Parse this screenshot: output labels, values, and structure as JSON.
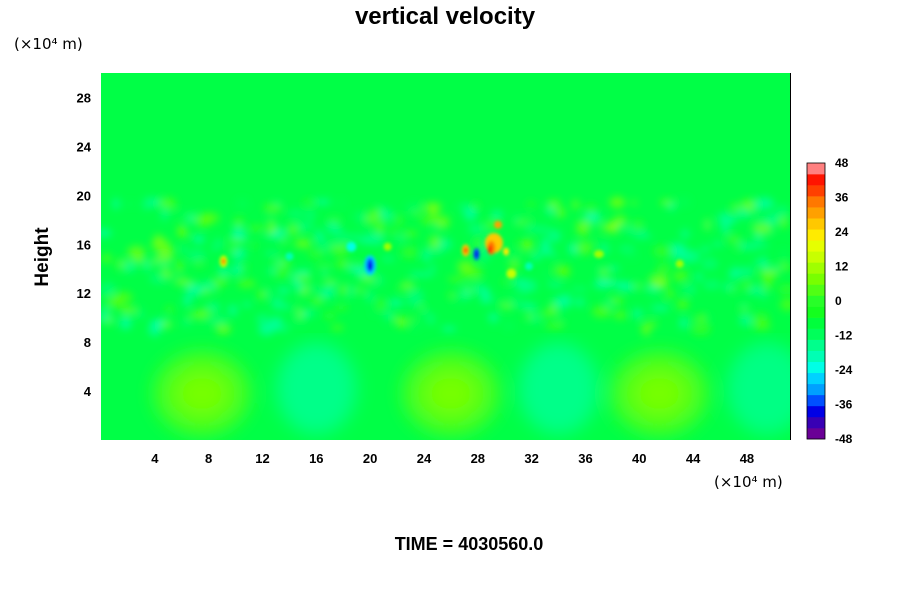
{
  "chart_data": {
    "type": "heatmap",
    "title": "vertical velocity",
    "ylabel": "Height",
    "x_unit_label": "(×10⁴ m)",
    "y_unit_label": "(×10⁴ m)",
    "xlim": [
      0,
      51.2
    ],
    "ylim": [
      0,
      30
    ],
    "x_ticks": [
      4,
      8,
      12,
      16,
      20,
      24,
      28,
      32,
      36,
      40,
      44,
      48
    ],
    "y_ticks": [
      4,
      8,
      12,
      16,
      20,
      24,
      28
    ],
    "colorbar": {
      "range": [
        -48,
        48
      ],
      "step": 4,
      "tick_values": [
        48,
        36,
        24,
        12,
        0,
        -12,
        -24,
        -36,
        -48
      ],
      "colors": [
        "#6a0096",
        "#3800b4",
        "#0000e6",
        "#0050ff",
        "#00a0ff",
        "#00d2ff",
        "#00ffe6",
        "#00ffb4",
        "#00ff8c",
        "#00ff5a",
        "#00ff3c",
        "#14ff1e",
        "#28ff28",
        "#50ff14",
        "#78ff00",
        "#a0ff00",
        "#c8ff00",
        "#e6ff00",
        "#ffeb00",
        "#ffc800",
        "#ffa000",
        "#ff7800",
        "#ff4000",
        "#ff1400",
        "#ff8080"
      ]
    },
    "footer": "TIME = 4030560.0"
  }
}
